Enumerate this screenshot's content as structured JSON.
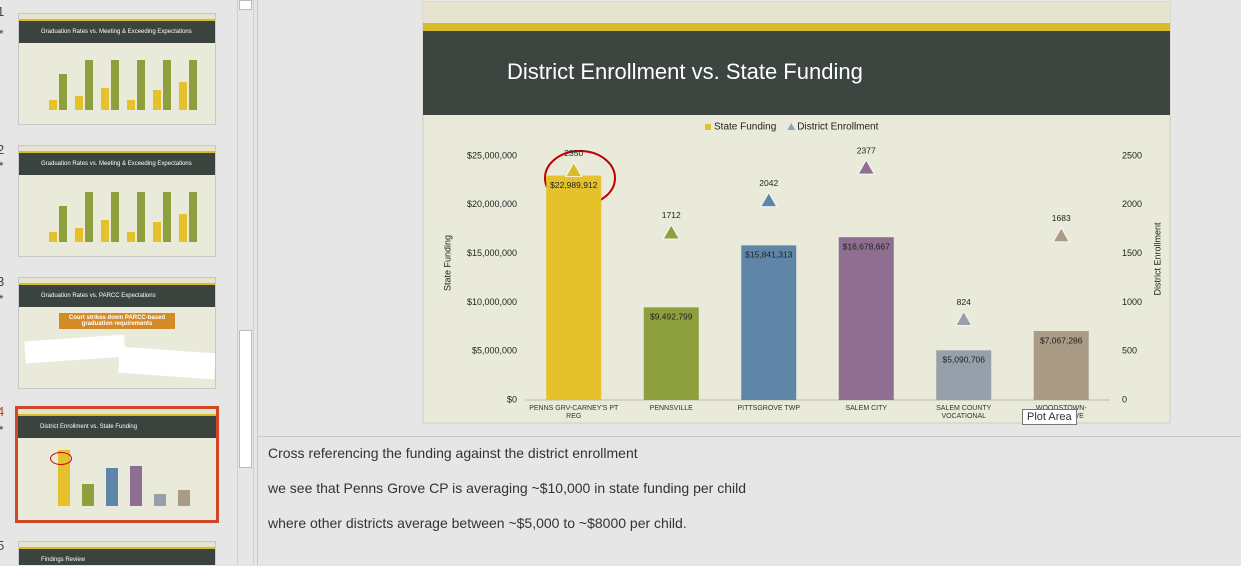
{
  "slides_panel": [
    {
      "number": "1",
      "title": "Graduation Rates vs. Meeting & Exceeding Expectations"
    },
    {
      "number": "2",
      "title": "Graduation Rates vs. Meeting & Exceeding Expectations"
    },
    {
      "number": "3",
      "title": "Graduation Rates vs. PARCC Expectations",
      "callout": "Court strikes down PARCC-based graduation requirements"
    },
    {
      "number": "4",
      "title": "District Enrollment vs. State Funding"
    },
    {
      "number": "5",
      "title": "Findings Review"
    }
  ],
  "chart_data": {
    "type": "bar",
    "title": "District Enrollment vs. State Funding",
    "categories": [
      "PENNS GRV-CARNEY'S PT REG",
      "PENNSVILLE",
      "PITTSGROVE TWP",
      "SALEM CITY",
      "SALEM COUNTY VOCATIONAL",
      "WOODSTOWN-PILESGROVE"
    ],
    "series": [
      {
        "name": "State Funding",
        "type": "bar",
        "color": "#e5c22c",
        "colors": [
          "#e5c22c",
          "#8ea03e",
          "#5f86a8",
          "#8e6e91",
          "#96a0ab",
          "#a99b85"
        ],
        "values": [
          22989912,
          9492799,
          15841313,
          16678667,
          5090706,
          7067286
        ],
        "value_labels": [
          "$22,989,912",
          "$9,492,799",
          "$15,841,313",
          "$16,678,667",
          "$5,090,706",
          "$7,067,286"
        ]
      },
      {
        "name": "District Enrollment",
        "type": "scatter",
        "axis": "y2",
        "color": "#8fa8c0",
        "colors": [
          "#d9bb2e",
          "#8ea03e",
          "#5f86a8",
          "#8e6e91",
          "#96a0ab",
          "#a99b85"
        ],
        "values": [
          2350,
          1712,
          2042,
          2377,
          824,
          1683
        ]
      }
    ],
    "ylabel": "State Funding",
    "y2label": "District Enrollment",
    "ylim": [
      0,
      25000000
    ],
    "yticks": [
      {
        "value": 0,
        "label": "$0"
      },
      {
        "value": 5000000,
        "label": "$5,000,000"
      },
      {
        "value": 10000000,
        "label": "$10,000,000"
      },
      {
        "value": 15000000,
        "label": "$15,000,000"
      },
      {
        "value": 20000000,
        "label": "$20,000,000"
      },
      {
        "value": 25000000,
        "label": "$25,000,000"
      }
    ],
    "y2lim": [
      0,
      2500
    ],
    "y2ticks": [
      0,
      500,
      1000,
      1500,
      2000,
      2500
    ],
    "grid": false,
    "legend": "top"
  },
  "tooltip": "Plot Area",
  "notes": [
    "Cross referencing the funding against the district enrollment",
    "we see that Penns Grove CP is averaging ~$10,000 in state funding per child",
    "where other districts average between ~$5,000 to ~$8000 per child."
  ]
}
